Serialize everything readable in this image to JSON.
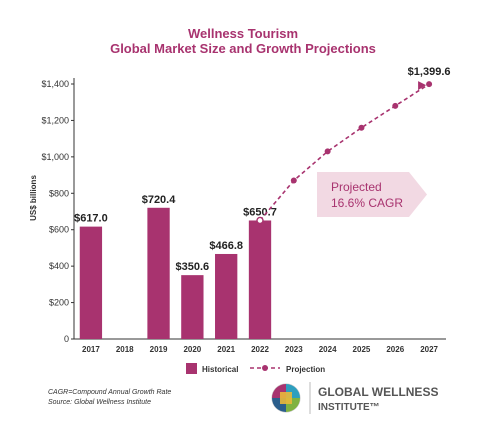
{
  "chart_data": {
    "type": "bar",
    "title": "Wellness Tourism",
    "subtitle": "Global Market Size and Growth Projections",
    "ylabel": "US$ billions",
    "xlabel": "",
    "ylim": [
      0,
      1400
    ],
    "yticks": [
      0,
      200,
      400,
      600,
      800,
      1000,
      1200,
      1400
    ],
    "ytick_labels": [
      "0",
      "$200",
      "$400",
      "$600",
      "$800",
      "$1,000",
      "$1,200",
      "$1,400"
    ],
    "categories": [
      "2017",
      "2018",
      "2019",
      "2020",
      "2021",
      "2022",
      "2023",
      "2024",
      "2025",
      "2026",
      "2027"
    ],
    "series": [
      {
        "name": "Historical",
        "type": "bar",
        "color": "#a8336f",
        "points": [
          {
            "x": "2017",
            "y": 617.0,
            "label": "$617.0"
          },
          {
            "x": "2019",
            "y": 720.4,
            "label": "$720.4"
          },
          {
            "x": "2020",
            "y": 350.6,
            "label": "$350.6"
          },
          {
            "x": "2021",
            "y": 466.8,
            "label": "$466.8"
          },
          {
            "x": "2022",
            "y": 650.7,
            "label": "$650.7"
          }
        ]
      },
      {
        "name": "Projection",
        "type": "line",
        "style": "dashed",
        "color": "#a8336f",
        "points": [
          {
            "x": "2022",
            "y": 650.7
          },
          {
            "x": "2023",
            "y": 870
          },
          {
            "x": "2024",
            "y": 1030
          },
          {
            "x": "2025",
            "y": 1160
          },
          {
            "x": "2026",
            "y": 1280
          },
          {
            "x": "2027",
            "y": 1399.6,
            "label": "$1,399.6"
          }
        ]
      }
    ],
    "annotations": [
      {
        "text_line1": "Projected",
        "text_line2": "16.6% CAGR",
        "fill": "#f2d9e3"
      }
    ],
    "grid": false,
    "legend_placement": "bottom"
  },
  "footnotes": {
    "line1": "CAGR=Compound Annual Growth Rate",
    "line2": "Source: Global Wellness Institute"
  },
  "logo": {
    "line1": "GLOBAL WELLNESS",
    "line2": "INSTITUTE™"
  }
}
